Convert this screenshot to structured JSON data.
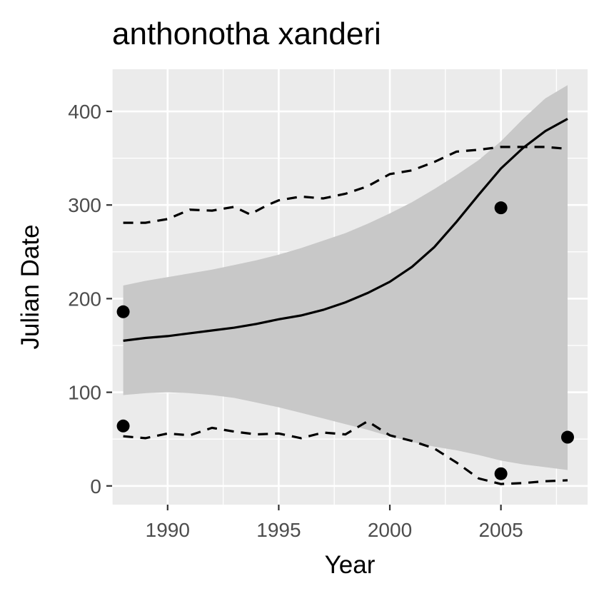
{
  "chart_data": {
    "type": "line",
    "title": "anthonotha xanderi",
    "xlabel": "Year",
    "ylabel": "Julian Date",
    "xlim": [
      1987.5,
      2008.9
    ],
    "ylim": [
      -20,
      445
    ],
    "x_ticks": [
      1990,
      1995,
      2000,
      2005
    ],
    "x_tick_labels": [
      "1990",
      "1995",
      "2000",
      "2005"
    ],
    "y_ticks": [
      0,
      100,
      200,
      300,
      400
    ],
    "y_tick_labels": [
      "0",
      "100",
      "200",
      "300",
      "400"
    ],
    "grid": true,
    "legend": "none",
    "colors": {
      "panel": "#ebebeb",
      "grid": "#ffffff",
      "ribbon": "#c8c8c8",
      "line": "#000000",
      "points": "#000000"
    },
    "series": [
      {
        "style": "solid-line",
        "x": [
          1988,
          1989,
          1990,
          1991,
          1992,
          1993,
          1994,
          1995,
          1996,
          1997,
          1998,
          1999,
          2000,
          2001,
          2002,
          2003,
          2004,
          2005,
          2006,
          2007,
          2008
        ],
        "y": [
          155,
          158,
          160,
          163,
          166,
          169,
          173,
          178,
          182,
          188,
          196,
          206,
          218,
          234,
          255,
          282,
          311,
          339,
          361,
          379,
          392
        ]
      },
      {
        "style": "ribbon-upper",
        "x": [
          1988,
          1989,
          1990,
          1991,
          1992,
          1993,
          1994,
          1995,
          1996,
          1997,
          1998,
          1999,
          2000,
          2001,
          2002,
          2003,
          2004,
          2005,
          2006,
          2007,
          2008
        ],
        "y": [
          214,
          219,
          223,
          227,
          231,
          236,
          241,
          247,
          254,
          262,
          270,
          280,
          291,
          303,
          317,
          332,
          348,
          368,
          392,
          414,
          428
        ]
      },
      {
        "style": "ribbon-lower",
        "x": [
          1988,
          1989,
          1990,
          1991,
          1992,
          1993,
          1994,
          1995,
          1996,
          1997,
          1998,
          1999,
          2000,
          2001,
          2002,
          2003,
          2004,
          2005,
          2006,
          2007,
          2008
        ],
        "y": [
          97,
          99,
          100,
          99,
          97,
          94,
          89,
          84,
          78,
          72,
          66,
          60,
          53,
          47,
          42,
          38,
          33,
          27,
          23,
          20,
          17
        ]
      },
      {
        "style": "dashed-upper",
        "x": [
          1988,
          1989,
          1990,
          1991,
          1992,
          1993,
          1993.7,
          1994.5,
          1995,
          1996,
          1997,
          1998,
          1999,
          2000,
          2001,
          2002,
          2003,
          2004,
          2005,
          2006,
          2007,
          2008
        ],
        "y": [
          281,
          281,
          285,
          295,
          294,
          298,
          290,
          300,
          305,
          309,
          307,
          312,
          320,
          333,
          337,
          346,
          357,
          359,
          362,
          362,
          362,
          360
        ]
      },
      {
        "style": "dashed-lower",
        "x": [
          1988,
          1989,
          1990,
          1991,
          1992,
          1993,
          1994,
          1995,
          1996,
          1997,
          1998,
          1999,
          2000,
          2001,
          2002,
          2003,
          2004,
          2005,
          2006,
          2007,
          2008
        ],
        "y": [
          53,
          51,
          56,
          54,
          62,
          58,
          55,
          56,
          51,
          57,
          55,
          69,
          54,
          48,
          40,
          25,
          8,
          2,
          3,
          5,
          6
        ]
      },
      {
        "style": "points",
        "x": [
          1988,
          1988,
          2005,
          2005,
          2008
        ],
        "y": [
          186,
          64,
          297,
          13,
          52
        ]
      }
    ]
  }
}
